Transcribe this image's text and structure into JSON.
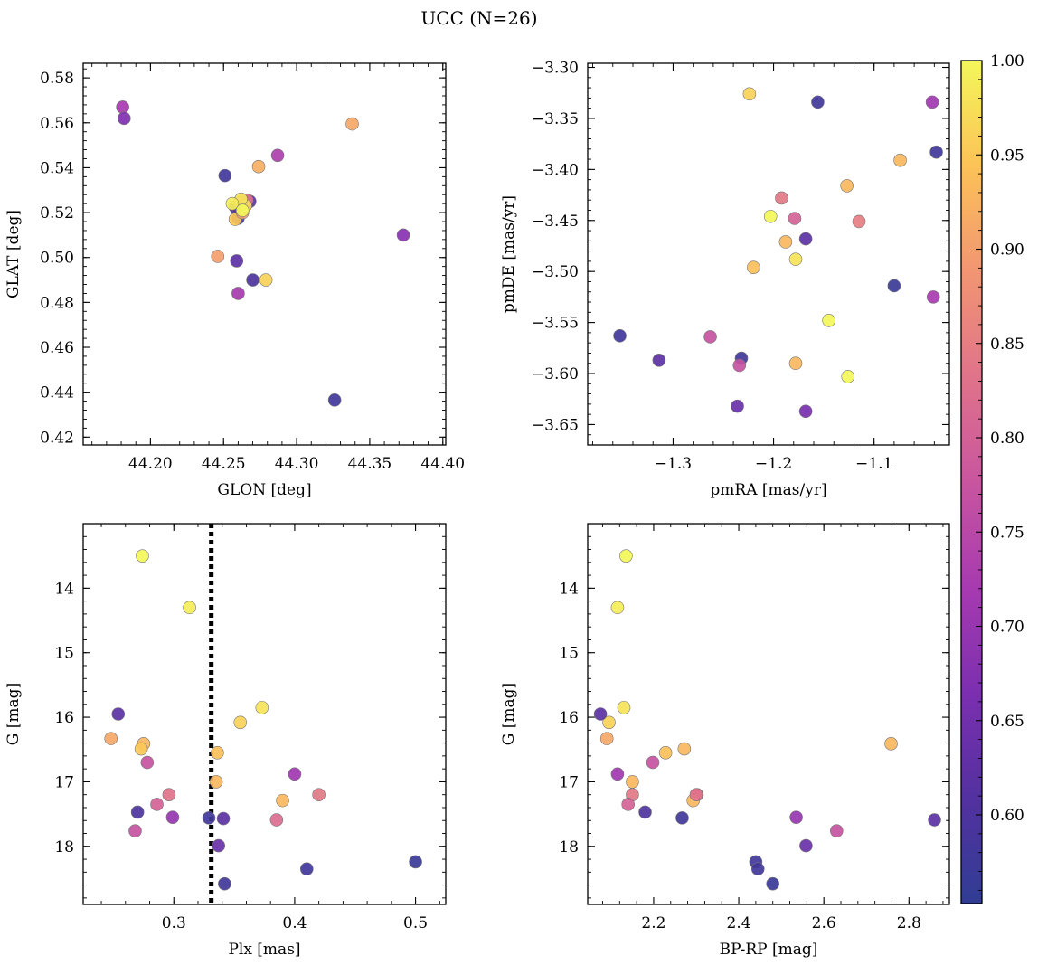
{
  "figure": {
    "title": "UCC (N=26)"
  },
  "colorbar": {
    "cmap": "plasma",
    "vmin": 0.553,
    "vmax": 1.0,
    "ticks": [
      0.6,
      0.65,
      0.7,
      0.75,
      0.8,
      0.85,
      0.9,
      0.95,
      1.0
    ],
    "tick_labels": [
      "0.60",
      "0.65",
      "0.70",
      "0.75",
      "0.80",
      "0.85",
      "0.90",
      "0.95",
      "1.00"
    ]
  },
  "chart_data": [
    {
      "type": "scatter",
      "xlabel": "GLON [deg]",
      "ylabel": "GLAT [deg]",
      "xlim": [
        44.154,
        44.402
      ],
      "ylim": [
        0.4165,
        0.5865
      ],
      "xticks": [
        44.2,
        44.25,
        44.3,
        44.35,
        44.4
      ],
      "xtick_labels": [
        "44.20",
        "44.25",
        "44.30",
        "44.35",
        "44.40"
      ],
      "yticks": [
        0.42,
        0.44,
        0.46,
        0.48,
        0.5,
        0.52,
        0.54,
        0.56,
        0.58
      ],
      "ytick_labels": [
        "0.42",
        "0.44",
        "0.46",
        "0.48",
        "0.50",
        "0.52",
        "0.54",
        "0.56",
        "0.58"
      ],
      "x": [
        44.181,
        44.182,
        44.338,
        44.287,
        44.274,
        44.251,
        44.268,
        44.266,
        44.262,
        44.259,
        44.26,
        44.258,
        44.258,
        44.263,
        44.261,
        44.246,
        44.259,
        44.27,
        44.279,
        44.26,
        44.373,
        44.326,
        44.265,
        44.262,
        44.256,
        44.263
      ],
      "y": [
        0.567,
        0.562,
        0.5595,
        0.5455,
        0.5405,
        0.5365,
        0.525,
        0.5255,
        0.5225,
        0.5215,
        0.5175,
        0.5225,
        0.517,
        0.52,
        0.5245,
        0.5005,
        0.4985,
        0.49,
        0.49,
        0.484,
        0.51,
        0.4365,
        0.523,
        0.526,
        0.524,
        0.521
      ],
      "c": [
        0.72,
        0.67,
        0.91,
        0.73,
        0.92,
        0.58,
        0.62,
        0.83,
        0.8,
        0.93,
        0.58,
        0.6,
        0.95,
        0.9,
        0.85,
        0.9,
        0.62,
        0.6,
        0.96,
        0.72,
        0.68,
        0.58,
        0.97,
        0.98,
        0.99,
        1.0
      ]
    },
    {
      "type": "scatter",
      "xlabel": "pmRA [mas/yr]",
      "ylabel": "pmDE [mas/yr]",
      "xlim": [
        -1.385,
        -1.025
      ],
      "ylim": [
        -3.67,
        -3.296
      ],
      "xticks": [
        -1.3,
        -1.2,
        -1.1
      ],
      "xtick_labels": [
        "−1.3",
        "−1.2",
        "−1.1"
      ],
      "yticks": [
        -3.65,
        -3.6,
        -3.55,
        -3.5,
        -3.45,
        -3.4,
        -3.35,
        -3.3
      ],
      "ytick_labels": [
        "−3.65",
        "−3.60",
        "−3.55",
        "−3.50",
        "−3.45",
        "−3.40",
        "−3.35",
        "−3.30"
      ],
      "x": [
        -1.224,
        -1.156,
        -1.042,
        -1.038,
        -1.074,
        -1.127,
        -1.192,
        -1.203,
        -1.179,
        -1.115,
        -1.168,
        -1.188,
        -1.22,
        -1.178,
        -1.08,
        -1.041,
        -1.145,
        -1.353,
        -1.314,
        -1.263,
        -1.232,
        -1.234,
        -1.178,
        -1.126,
        -1.236,
        -1.168
      ],
      "y": [
        -3.326,
        -3.334,
        -3.334,
        -3.383,
        -3.391,
        -3.416,
        -3.428,
        -3.446,
        -3.448,
        -3.451,
        -3.468,
        -3.471,
        -3.496,
        -3.488,
        -3.514,
        -3.525,
        -3.548,
        -3.563,
        -3.587,
        -3.564,
        -3.585,
        -3.592,
        -3.59,
        -3.603,
        -3.632,
        -3.637
      ],
      "c": [
        0.96,
        0.58,
        0.71,
        0.58,
        0.93,
        0.93,
        0.84,
        1.0,
        0.8,
        0.85,
        0.62,
        0.93,
        0.94,
        0.98,
        0.57,
        0.72,
        1.0,
        0.58,
        0.62,
        0.77,
        0.58,
        0.77,
        0.93,
        1.0,
        0.64,
        0.66
      ]
    },
    {
      "type": "scatter",
      "xlabel": "Plx [mas]",
      "ylabel": "G [mag]",
      "xlim": [
        0.225,
        0.525
      ],
      "ylim": [
        18.9,
        13.0
      ],
      "invert_y": true,
      "vline": {
        "x": 0.331,
        "style": "dotted",
        "color": "#000000"
      },
      "xticks": [
        0.3,
        0.4,
        0.5
      ],
      "xtick_labels": [
        "0.3",
        "0.4",
        "0.5"
      ],
      "yticks": [
        14,
        15,
        16,
        17,
        18
      ],
      "ytick_labels": [
        "14",
        "15",
        "16",
        "17",
        "18"
      ],
      "x": [
        0.274,
        0.313,
        0.373,
        0.355,
        0.254,
        0.248,
        0.275,
        0.273,
        0.336,
        0.278,
        0.4,
        0.335,
        0.296,
        0.39,
        0.286,
        0.42,
        0.27,
        0.299,
        0.329,
        0.341,
        0.385,
        0.268,
        0.337,
        0.342,
        0.41,
        0.5
      ],
      "y": [
        13.5,
        14.3,
        15.85,
        16.08,
        15.95,
        16.33,
        16.41,
        16.49,
        16.55,
        16.7,
        16.88,
        17.0,
        17.2,
        17.29,
        17.35,
        17.2,
        17.47,
        17.55,
        17.56,
        17.57,
        17.59,
        17.76,
        17.99,
        18.58,
        18.35,
        18.24
      ],
      "c": [
        1.0,
        0.99,
        0.98,
        0.96,
        0.62,
        0.91,
        0.93,
        0.95,
        0.94,
        0.77,
        0.71,
        0.93,
        0.83,
        0.93,
        0.8,
        0.84,
        0.6,
        0.7,
        0.58,
        0.62,
        0.82,
        0.77,
        0.64,
        0.58,
        0.58,
        0.57
      ]
    },
    {
      "type": "scatter",
      "xlabel": "BP-RP [mag]",
      "ylabel": "G [mag]",
      "xlim": [
        2.045,
        2.895
      ],
      "ylim": [
        18.9,
        13.0
      ],
      "invert_y": true,
      "xticks": [
        2.2,
        2.4,
        2.6,
        2.8
      ],
      "xtick_labels": [
        "2.2",
        "2.4",
        "2.6",
        "2.8"
      ],
      "yticks": [
        14,
        15,
        16,
        17,
        18
      ],
      "ytick_labels": [
        "14",
        "15",
        "16",
        "17",
        "18"
      ],
      "x": [
        2.135,
        2.115,
        2.13,
        2.095,
        2.075,
        2.09,
        2.198,
        2.228,
        2.272,
        2.758,
        2.115,
        2.15,
        2.15,
        2.302,
        2.293,
        2.14,
        2.18,
        2.267,
        2.535,
        2.63,
        2.86,
        2.558,
        2.44,
        2.445,
        2.48,
        2.3
      ],
      "y": [
        13.5,
        14.3,
        15.85,
        16.08,
        15.95,
        16.33,
        16.7,
        16.55,
        16.49,
        16.41,
        16.88,
        17.0,
        17.2,
        17.2,
        17.29,
        17.35,
        17.47,
        17.56,
        17.55,
        17.76,
        17.59,
        17.99,
        18.24,
        18.35,
        18.58,
        17.2
      ],
      "c": [
        1.0,
        0.99,
        0.98,
        0.96,
        0.62,
        0.91,
        0.77,
        0.94,
        0.93,
        0.93,
        0.71,
        0.93,
        0.84,
        0.83,
        0.93,
        0.8,
        0.6,
        0.58,
        0.7,
        0.77,
        0.62,
        0.64,
        0.58,
        0.58,
        0.57,
        0.83
      ]
    }
  ]
}
